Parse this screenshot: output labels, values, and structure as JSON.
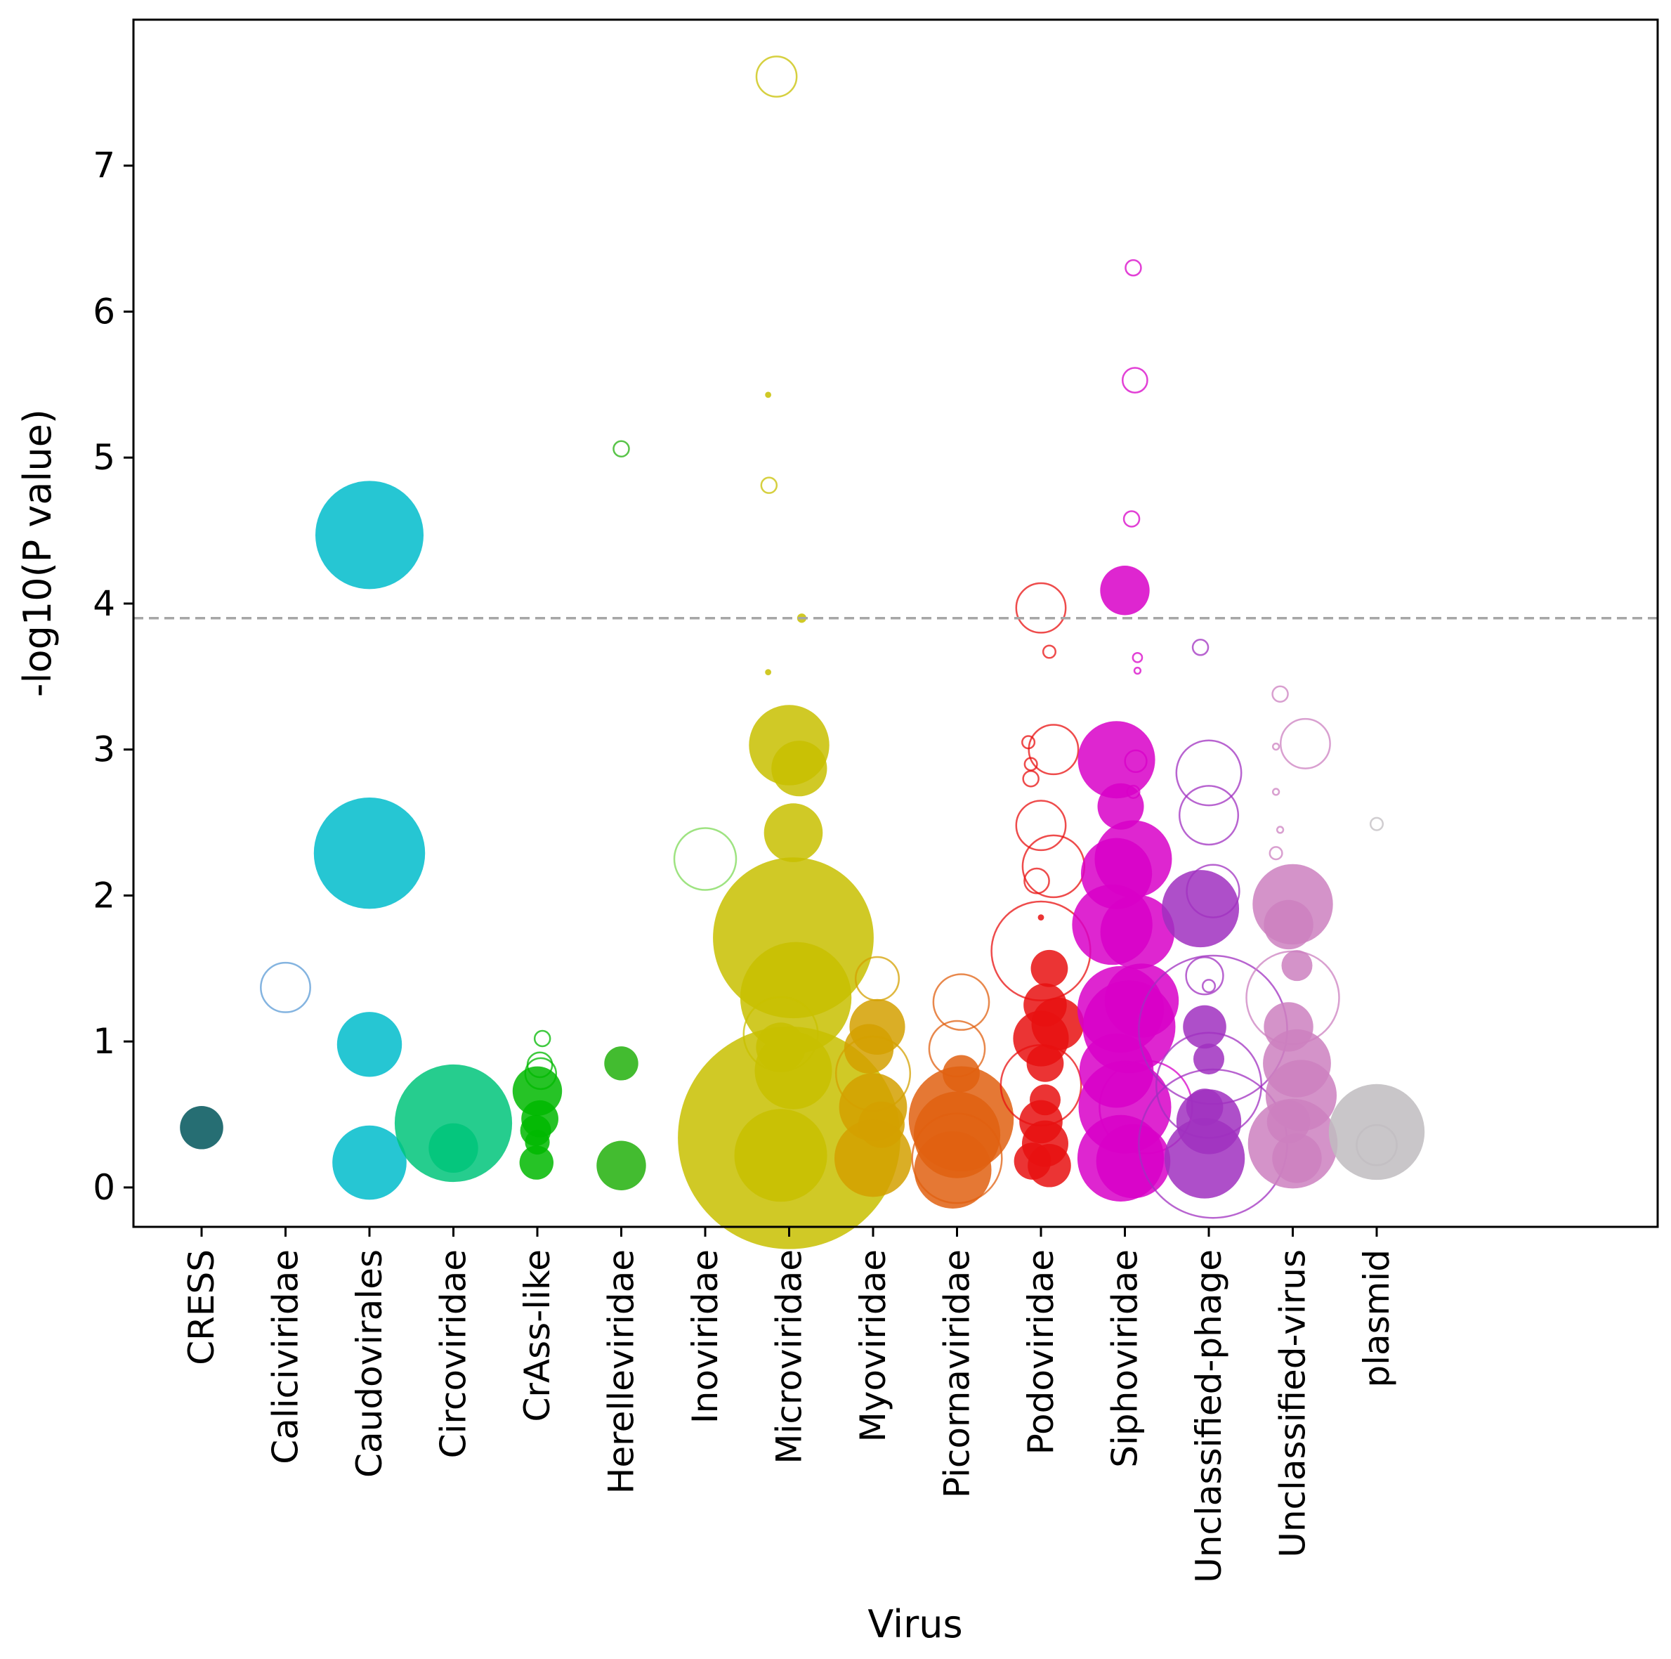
{
  "chart_data": {
    "type": "scatter",
    "title": "",
    "xlabel": "Virus",
    "ylabel": "-log10(P value)",
    "ylim": [
      -0.27,
      8.0
    ],
    "yticks": [
      0,
      1,
      2,
      3,
      4,
      5,
      6,
      7
    ],
    "grid": false,
    "legend": "none",
    "threshold": {
      "y": 3.9,
      "style": "dashed",
      "color": "#a6a6a6"
    },
    "categories": [
      "CRESS",
      "Caliciviridae",
      "Caudovirales",
      "Circoviridae",
      "CrAss-like",
      "Herelleviridae",
      "Inoviridae",
      "Microviridae",
      "Myoviridae",
      "Picornaviridae",
      "Podoviridae",
      "Siphoviridae",
      "Unclassified-phage",
      "Unclassified-virus",
      "plasmid"
    ],
    "series": [
      {
        "category": "CRESS",
        "color": "#00555a",
        "points": [
          {
            "dx": 0,
            "y": 0.41,
            "size": 1.4,
            "filled": true
          }
        ]
      },
      {
        "category": "Caliciviridae",
        "color": "#5b9bd5",
        "points": [
          {
            "dx": 0,
            "y": 1.37,
            "size": 1.6,
            "filled": false
          }
        ]
      },
      {
        "category": "Caudovirales",
        "color": "#00bccb",
        "points": [
          {
            "dx": 0,
            "y": 4.47,
            "size": 3.5,
            "filled": true
          },
          {
            "dx": 0,
            "y": 2.29,
            "size": 3.6,
            "filled": true
          },
          {
            "dx": 0,
            "y": 0.98,
            "size": 2.1,
            "filled": true
          },
          {
            "dx": 0,
            "y": 0.17,
            "size": 2.4,
            "filled": true
          }
        ]
      },
      {
        "category": "Circoviridae",
        "color": "#00c47a",
        "points": [
          {
            "dx": 0,
            "y": 0.44,
            "size": 3.8,
            "filled": true
          },
          {
            "dx": 0,
            "y": 0.27,
            "size": 1.6,
            "filled": true
          }
        ]
      },
      {
        "category": "CrAss-like",
        "color": "#00b800",
        "points": [
          {
            "dx": 0.06,
            "y": 1.02,
            "size": 0.5,
            "filled": false
          },
          {
            "dx": 0.03,
            "y": 0.84,
            "size": 0.8,
            "filled": false
          },
          {
            "dx": 0.04,
            "y": 0.78,
            "size": 1.0,
            "filled": false
          },
          {
            "dx": 0.0,
            "y": 0.66,
            "size": 1.6,
            "filled": true
          },
          {
            "dx": 0.03,
            "y": 0.47,
            "size": 1.2,
            "filled": true
          },
          {
            "dx": -0.02,
            "y": 0.39,
            "size": 1.0,
            "filled": true
          },
          {
            "dx": 0.0,
            "y": 0.31,
            "size": 0.8,
            "filled": true
          },
          {
            "dx": -0.01,
            "y": 0.17,
            "size": 1.1,
            "filled": true
          }
        ]
      },
      {
        "category": "Herelleviridae",
        "color": "#22b00c",
        "points": [
          {
            "dx": 0.0,
            "y": 5.06,
            "size": 0.5,
            "filled": false
          },
          {
            "dx": 0.0,
            "y": 0.85,
            "size": 1.1,
            "filled": true
          },
          {
            "dx": 0.0,
            "y": 0.15,
            "size": 1.6,
            "filled": true
          }
        ]
      },
      {
        "category": "Inoviridae",
        "color": "#7ed957",
        "points": [
          {
            "dx": 0.0,
            "y": 2.25,
            "size": 2.0,
            "filled": false
          }
        ]
      },
      {
        "category": "Microviridae",
        "color": "#c8c000",
        "points": [
          {
            "dx": -0.15,
            "y": 7.61,
            "size": 1.3,
            "filled": false
          },
          {
            "dx": -0.25,
            "y": 5.43,
            "size": 0.2,
            "filled": true
          },
          {
            "dx": -0.24,
            "y": 4.81,
            "size": 0.5,
            "filled": false
          },
          {
            "dx": 0.15,
            "y": 3.9,
            "size": 0.3,
            "filled": true
          },
          {
            "dx": -0.25,
            "y": 3.53,
            "size": 0.2,
            "filled": true
          },
          {
            "dx": 0.0,
            "y": 3.03,
            "size": 2.6,
            "filled": true
          },
          {
            "dx": 0.12,
            "y": 2.87,
            "size": 1.8,
            "filled": true
          },
          {
            "dx": 0.05,
            "y": 2.43,
            "size": 1.9,
            "filled": true
          },
          {
            "dx": 0.05,
            "y": 1.71,
            "size": 5.2,
            "filled": true
          },
          {
            "dx": 0.08,
            "y": 1.3,
            "size": 3.6,
            "filled": true
          },
          {
            "dx": -0.1,
            "y": 1.05,
            "size": 2.4,
            "filled": false
          },
          {
            "dx": -0.1,
            "y": 0.96,
            "size": 1.6,
            "filled": true
          },
          {
            "dx": 0.05,
            "y": 0.8,
            "size": 2.5,
            "filled": true
          },
          {
            "dx": 0.0,
            "y": 0.34,
            "size": 7.2,
            "filled": true
          },
          {
            "dx": -0.1,
            "y": 0.22,
            "size": 3.0,
            "filled": true
          }
        ]
      },
      {
        "category": "Myoviridae",
        "color": "#d4a000",
        "points": [
          {
            "dx": 0.05,
            "y": 1.43,
            "size": 1.4,
            "filled": false
          },
          {
            "dx": 0.05,
            "y": 1.1,
            "size": 1.8,
            "filled": true
          },
          {
            "dx": -0.05,
            "y": 0.95,
            "size": 1.6,
            "filled": true
          },
          {
            "dx": 0.0,
            "y": 0.78,
            "size": 2.4,
            "filled": false
          },
          {
            "dx": 0.0,
            "y": 0.55,
            "size": 2.2,
            "filled": true
          },
          {
            "dx": 0.1,
            "y": 0.43,
            "size": 1.5,
            "filled": true
          },
          {
            "dx": 0.0,
            "y": 0.2,
            "size": 2.5,
            "filled": true
          }
        ]
      },
      {
        "category": "Picornaviridae",
        "color": "#e06010",
        "points": [
          {
            "dx": 0.05,
            "y": 1.27,
            "size": 1.8,
            "filled": false
          },
          {
            "dx": 0.0,
            "y": 0.95,
            "size": 1.8,
            "filled": false
          },
          {
            "dx": 0.05,
            "y": 0.78,
            "size": 1.2,
            "filled": true
          },
          {
            "dx": 0.05,
            "y": 0.47,
            "size": 3.4,
            "filled": true
          },
          {
            "dx": 0.0,
            "y": 0.36,
            "size": 2.8,
            "filled": true
          },
          {
            "dx": 0.0,
            "y": 0.2,
            "size": 2.9,
            "filled": false
          },
          {
            "dx": -0.05,
            "y": 0.12,
            "size": 2.5,
            "filled": true
          }
        ]
      },
      {
        "category": "Podoviridae",
        "color": "#e81010",
        "points": [
          {
            "dx": 0.0,
            "y": 3.97,
            "size": 1.6,
            "filled": false
          },
          {
            "dx": 0.1,
            "y": 3.67,
            "size": 0.4,
            "filled": false
          },
          {
            "dx": -0.15,
            "y": 3.05,
            "size": 0.4,
            "filled": false
          },
          {
            "dx": 0.15,
            "y": 3.0,
            "size": 1.6,
            "filled": false
          },
          {
            "dx": -0.12,
            "y": 2.9,
            "size": 0.4,
            "filled": false
          },
          {
            "dx": -0.12,
            "y": 2.8,
            "size": 0.5,
            "filled": false
          },
          {
            "dx": 0.0,
            "y": 2.48,
            "size": 1.6,
            "filled": false
          },
          {
            "dx": 0.15,
            "y": 2.2,
            "size": 2.0,
            "filled": false
          },
          {
            "dx": -0.05,
            "y": 2.1,
            "size": 0.8,
            "filled": false
          },
          {
            "dx": 0.0,
            "y": 1.85,
            "size": 0.2,
            "filled": true
          },
          {
            "dx": 0.0,
            "y": 1.62,
            "size": 3.2,
            "filled": false
          },
          {
            "dx": 0.1,
            "y": 1.5,
            "size": 1.2,
            "filled": true
          },
          {
            "dx": 0.05,
            "y": 1.25,
            "size": 1.4,
            "filled": true
          },
          {
            "dx": 0.2,
            "y": 1.12,
            "size": 1.7,
            "filled": true
          },
          {
            "dx": 0.0,
            "y": 1.02,
            "size": 1.8,
            "filled": true
          },
          {
            "dx": 0.05,
            "y": 0.85,
            "size": 1.2,
            "filled": true
          },
          {
            "dx": 0.0,
            "y": 0.7,
            "size": 2.6,
            "filled": false
          },
          {
            "dx": 0.05,
            "y": 0.6,
            "size": 1.0,
            "filled": true
          },
          {
            "dx": 0.0,
            "y": 0.45,
            "size": 1.4,
            "filled": true
          },
          {
            "dx": 0.05,
            "y": 0.3,
            "size": 1.5,
            "filled": true
          },
          {
            "dx": -0.1,
            "y": 0.18,
            "size": 1.2,
            "filled": true
          },
          {
            "dx": 0.1,
            "y": 0.15,
            "size": 1.4,
            "filled": true
          }
        ]
      },
      {
        "category": "Siphoviridae",
        "color": "#d800c8",
        "points": [
          {
            "dx": 0.1,
            "y": 6.3,
            "size": 0.5,
            "filled": false
          },
          {
            "dx": 0.12,
            "y": 5.53,
            "size": 0.8,
            "filled": false
          },
          {
            "dx": 0.08,
            "y": 4.58,
            "size": 0.5,
            "filled": false
          },
          {
            "dx": 0.0,
            "y": 4.09,
            "size": 1.6,
            "filled": true
          },
          {
            "dx": 0.15,
            "y": 3.63,
            "size": 0.3,
            "filled": false
          },
          {
            "dx": 0.15,
            "y": 3.54,
            "size": 0.2,
            "filled": false
          },
          {
            "dx": -0.1,
            "y": 2.93,
            "size": 2.5,
            "filled": true
          },
          {
            "dx": 0.13,
            "y": 2.92,
            "size": 0.7,
            "filled": false
          },
          {
            "dx": 0.1,
            "y": 2.71,
            "size": 0.4,
            "filled": false
          },
          {
            "dx": -0.05,
            "y": 2.61,
            "size": 1.5,
            "filled": true
          },
          {
            "dx": 0.1,
            "y": 2.25,
            "size": 2.5,
            "filled": true
          },
          {
            "dx": -0.1,
            "y": 2.15,
            "size": 2.3,
            "filled": true
          },
          {
            "dx": -0.15,
            "y": 1.8,
            "size": 2.6,
            "filled": true
          },
          {
            "dx": 0.15,
            "y": 1.75,
            "size": 2.4,
            "filled": true
          },
          {
            "dx": 0.2,
            "y": 1.28,
            "size": 2.4,
            "filled": true
          },
          {
            "dx": -0.05,
            "y": 1.22,
            "size": 2.8,
            "filled": true
          },
          {
            "dx": 0.05,
            "y": 1.1,
            "size": 3.0,
            "filled": true
          },
          {
            "dx": -0.1,
            "y": 0.8,
            "size": 2.4,
            "filled": true
          },
          {
            "dx": 0.25,
            "y": 0.55,
            "size": 3.0,
            "filled": false
          },
          {
            "dx": 0.0,
            "y": 0.55,
            "size": 3.0,
            "filled": true
          },
          {
            "dx": -0.05,
            "y": 0.2,
            "size": 2.8,
            "filled": true
          },
          {
            "dx": 0.1,
            "y": 0.18,
            "size": 2.4,
            "filled": true
          }
        ]
      },
      {
        "category": "Unclassified-phage",
        "color": "#a030c0",
        "points": [
          {
            "dx": -0.1,
            "y": 3.7,
            "size": 0.5,
            "filled": false
          },
          {
            "dx": 0.0,
            "y": 2.84,
            "size": 2.1,
            "filled": false
          },
          {
            "dx": 0.0,
            "y": 2.55,
            "size": 1.9,
            "filled": false
          },
          {
            "dx": 0.05,
            "y": 2.03,
            "size": 1.7,
            "filled": false
          },
          {
            "dx": -0.1,
            "y": 1.91,
            "size": 2.5,
            "filled": true
          },
          {
            "dx": -0.05,
            "y": 1.45,
            "size": 1.2,
            "filled": false
          },
          {
            "dx": 0.0,
            "y": 1.38,
            "size": 0.4,
            "filled": false
          },
          {
            "dx": 0.05,
            "y": 1.08,
            "size": 4.8,
            "filled": false
          },
          {
            "dx": -0.05,
            "y": 1.1,
            "size": 1.4,
            "filled": true
          },
          {
            "dx": 0.0,
            "y": 0.88,
            "size": 1.0,
            "filled": true
          },
          {
            "dx": 0.0,
            "y": 0.7,
            "size": 3.4,
            "filled": false
          },
          {
            "dx": -0.05,
            "y": 0.55,
            "size": 1.2,
            "filled": true
          },
          {
            "dx": 0.0,
            "y": 0.45,
            "size": 2.1,
            "filled": true
          },
          {
            "dx": 0.05,
            "y": 0.3,
            "size": 4.8,
            "filled": false
          },
          {
            "dx": -0.05,
            "y": 0.2,
            "size": 2.6,
            "filled": true
          }
        ]
      },
      {
        "category": "Unclassified-virus",
        "color": "#cc80c0",
        "points": [
          {
            "dx": -0.15,
            "y": 3.38,
            "size": 0.5,
            "filled": false
          },
          {
            "dx": 0.15,
            "y": 3.04,
            "size": 1.6,
            "filled": false
          },
          {
            "dx": -0.2,
            "y": 3.02,
            "size": 0.2,
            "filled": false
          },
          {
            "dx": -0.2,
            "y": 2.71,
            "size": 0.2,
            "filled": false
          },
          {
            "dx": -0.15,
            "y": 2.45,
            "size": 0.2,
            "filled": false
          },
          {
            "dx": -0.2,
            "y": 2.29,
            "size": 0.4,
            "filled": false
          },
          {
            "dx": 0.0,
            "y": 1.94,
            "size": 2.6,
            "filled": true
          },
          {
            "dx": -0.05,
            "y": 1.8,
            "size": 1.6,
            "filled": true
          },
          {
            "dx": 0.05,
            "y": 1.52,
            "size": 1.0,
            "filled": true
          },
          {
            "dx": 0.0,
            "y": 1.3,
            "size": 3.0,
            "filled": false
          },
          {
            "dx": -0.05,
            "y": 1.1,
            "size": 1.6,
            "filled": true
          },
          {
            "dx": 0.05,
            "y": 0.85,
            "size": 2.2,
            "filled": true
          },
          {
            "dx": 0.1,
            "y": 0.63,
            "size": 2.3,
            "filled": true
          },
          {
            "dx": -0.05,
            "y": 0.45,
            "size": 1.4,
            "filled": true
          },
          {
            "dx": 0.0,
            "y": 0.3,
            "size": 2.9,
            "filled": true
          },
          {
            "dx": 0.05,
            "y": 0.2,
            "size": 1.6,
            "filled": true
          }
        ]
      },
      {
        "category": "plasmid",
        "color": "#c0bcc0",
        "points": [
          {
            "dx": 0.0,
            "y": 2.49,
            "size": 0.4,
            "filled": false
          },
          {
            "dx": 0.0,
            "y": 0.38,
            "size": 3.1,
            "filled": true
          },
          {
            "dx": 0.0,
            "y": 0.29,
            "size": 1.3,
            "filled": false
          }
        ]
      }
    ]
  }
}
